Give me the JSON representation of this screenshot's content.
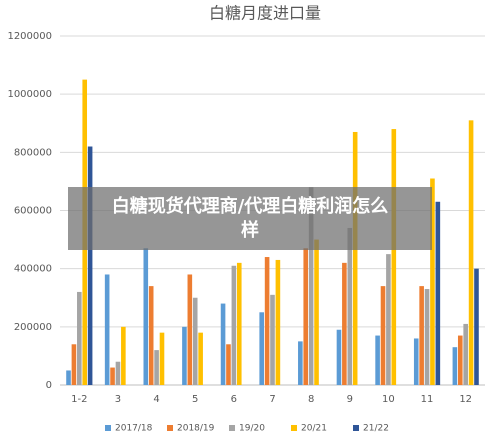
{
  "chart_data": {
    "type": "bar",
    "title": "白糖月度进口量",
    "categories": [
      "1-2",
      "3",
      "4",
      "5",
      "6",
      "7",
      "8",
      "9",
      "10",
      "11",
      "12"
    ],
    "series": [
      {
        "name": "2017/18",
        "color": "#5b9bd5",
        "values": [
          50000,
          380000,
          470000,
          200000,
          280000,
          250000,
          150000,
          190000,
          170000,
          160000,
          130000
        ]
      },
      {
        "name": "2018/19",
        "color": "#ed7d31",
        "values": [
          140000,
          60000,
          340000,
          380000,
          140000,
          440000,
          470000,
          420000,
          340000,
          340000,
          170000
        ]
      },
      {
        "name": "19/20",
        "color": "#a5a5a5",
        "values": [
          320000,
          80000,
          120000,
          300000,
          410000,
          310000,
          680000,
          540000,
          450000,
          330000,
          210000
        ]
      },
      {
        "name": "20/21",
        "color": "#ffc000",
        "values": [
          1050000,
          200000,
          180000,
          180000,
          420000,
          430000,
          500000,
          870000,
          880000,
          710000,
          910000
        ]
      },
      {
        "name": "21/22",
        "color": "#2f5597",
        "values": [
          820000,
          null,
          null,
          null,
          null,
          null,
          null,
          null,
          null,
          630000,
          400000
        ]
      }
    ],
    "ylim": [
      0,
      1200000
    ],
    "yticks": [
      0,
      200000,
      400000,
      600000,
      800000,
      1000000,
      1200000
    ],
    "grid": true,
    "legend": "bottom",
    "overlay_text": "白糖现货代理商/代理白糖利润怎么样"
  }
}
